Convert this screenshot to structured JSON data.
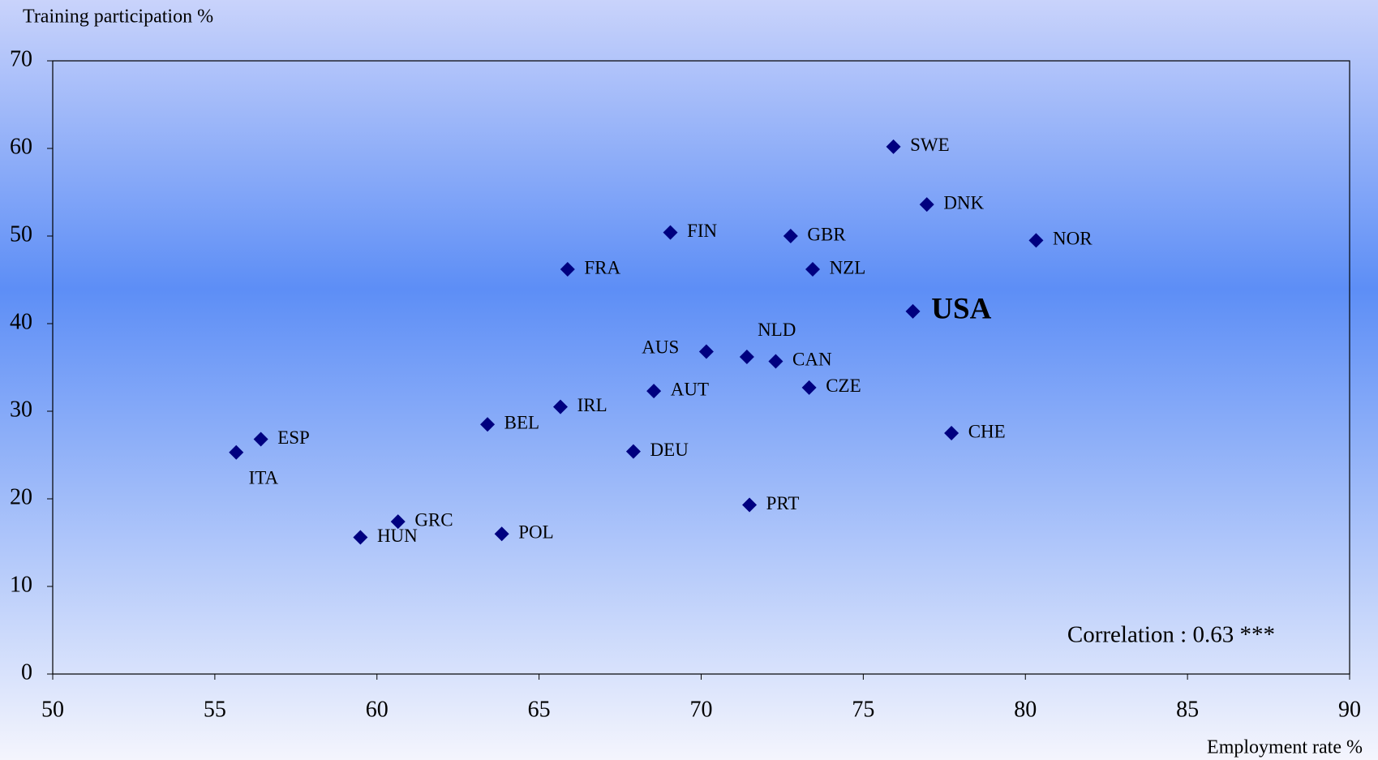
{
  "chart_data": {
    "type": "scatter",
    "x_label": "Employment rate %",
    "y_label": "Training participation %",
    "annotation": "Correlation : 0.63 ***",
    "color": "#000080",
    "labels": [
      "SWE",
      "DNK",
      "NOR",
      "FIN",
      "GBR",
      "FRA",
      "NZL",
      "USA",
      "AUS",
      "NLD",
      "CAN",
      "AUT",
      "CZE",
      "IRL",
      "BEL",
      "CHE",
      "ESP",
      "ITA",
      "DEU",
      "PRT",
      "GRC",
      "POL",
      "HUN"
    ],
    "x": [
      75.93,
      76.96,
      80.33,
      69.05,
      72.76,
      65.88,
      73.44,
      76.53,
      70.16,
      71.41,
      72.3,
      68.54,
      73.33,
      65.66,
      63.41,
      77.72,
      56.42,
      55.66,
      67.91,
      71.49,
      60.65,
      63.85,
      59.49
    ],
    "values": [
      60.2,
      53.6,
      49.5,
      50.4,
      50.0,
      46.2,
      46.2,
      41.4,
      36.8,
      36.2,
      35.7,
      32.3,
      32.7,
      30.5,
      28.5,
      27.5,
      26.8,
      25.3,
      25.4,
      19.3,
      17.4,
      16.0,
      15.6
    ],
    "xlim": [
      50,
      90
    ],
    "xticks": [
      50,
      55,
      60,
      65,
      70,
      75,
      80,
      85,
      90
    ],
    "ylim": [
      0,
      70
    ],
    "yticks": [
      0,
      10,
      20,
      30,
      40,
      50,
      60,
      70
    ],
    "grid": false
  }
}
